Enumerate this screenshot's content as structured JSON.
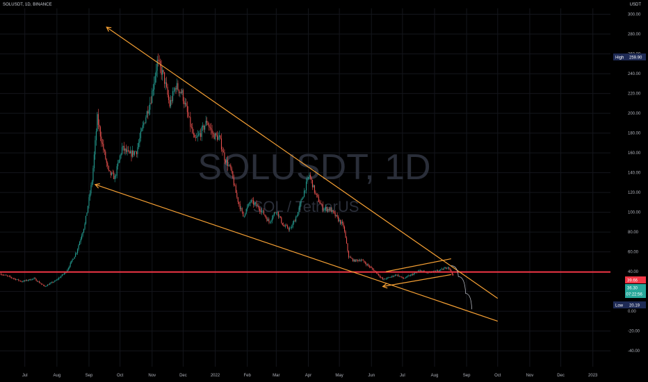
{
  "header": {
    "symbol": "SOLUSDT, 1D, BINANCE",
    "currency": "USDT"
  },
  "watermark": {
    "main": "SOLUSDT, 1D",
    "sub": "SOL / TetherUS"
  },
  "price_badges": {
    "high_label": "High",
    "high_value": "259.90",
    "resistance_value": "39.66",
    "current_value": "36.30",
    "countdown": "07:22:56",
    "low_label": "Low",
    "low_value": "20.19"
  },
  "colors": {
    "background": "#000000",
    "up": "#26a69a",
    "down": "#ef5350",
    "trendline": "#f7a134",
    "horizontal_line": "#f23645",
    "projection": "#b2b5be",
    "high_badge": "#1e2a55",
    "current_badge": "#26a69a"
  },
  "chart_data": {
    "type": "candlestick",
    "yaxis": {
      "ticks": [
        "300.00",
        "280.00",
        "260.00",
        "240.00",
        "220.00",
        "200.00",
        "180.00",
        "160.00",
        "140.00",
        "120.00",
        "100.00",
        "80.00",
        "60.00",
        "40.00",
        "20.00",
        "0.00",
        "-20.00",
        "-40.00"
      ],
      "tick_values": [
        300,
        280,
        260,
        240,
        220,
        200,
        180,
        160,
        140,
        120,
        100,
        80,
        60,
        40,
        20,
        0,
        -20,
        -40
      ],
      "range": [
        -42,
        306
      ]
    },
    "xaxis": {
      "ticks": [
        "Jul",
        "Aug",
        "Sep",
        "Oct",
        "Nov",
        "Dec",
        "2022",
        "Feb",
        "Mar",
        "Apr",
        "May",
        "Jun",
        "Jul",
        "Aug",
        "Sep",
        "Oct",
        "Nov",
        "Dec",
        "2023"
      ],
      "tick_dates": [
        "2021-07-01",
        "2021-08-01",
        "2021-09-01",
        "2021-10-01",
        "2021-11-01",
        "2021-12-01",
        "2022-01-01",
        "2022-02-01",
        "2022-03-01",
        "2022-04-01",
        "2022-05-01",
        "2022-06-01",
        "2022-07-01",
        "2022-08-01",
        "2022-09-01",
        "2022-10-01",
        "2022-11-01",
        "2022-12-01",
        "2023-01-01"
      ],
      "range": [
        "2021-06-07",
        "2023-01-18"
      ]
    },
    "price_path": [
      [
        "2021-06-07",
        38
      ],
      [
        "2021-06-18",
        34
      ],
      [
        "2021-06-28",
        30
      ],
      [
        "2021-07-10",
        33
      ],
      [
        "2021-07-20",
        25
      ],
      [
        "2021-07-31",
        31
      ],
      [
        "2021-08-10",
        40
      ],
      [
        "2021-08-20",
        60
      ],
      [
        "2021-08-28",
        88
      ],
      [
        "2021-09-04",
        132
      ],
      [
        "2021-09-09",
        195
      ],
      [
        "2021-09-14",
        168
      ],
      [
        "2021-09-20",
        140
      ],
      [
        "2021-09-26",
        135
      ],
      [
        "2021-10-03",
        165
      ],
      [
        "2021-10-10",
        158
      ],
      [
        "2021-10-17",
        162
      ],
      [
        "2021-10-24",
        190
      ],
      [
        "2021-10-31",
        215
      ],
      [
        "2021-11-06",
        252
      ],
      [
        "2021-11-12",
        238
      ],
      [
        "2021-11-18",
        208
      ],
      [
        "2021-11-24",
        228
      ],
      [
        "2021-11-30",
        220
      ],
      [
        "2021-12-06",
        196
      ],
      [
        "2021-12-12",
        172
      ],
      [
        "2021-12-18",
        180
      ],
      [
        "2021-12-24",
        192
      ],
      [
        "2021-12-30",
        178
      ],
      [
        "2022-01-05",
        175
      ],
      [
        "2022-01-10",
        155
      ],
      [
        "2022-01-16",
        143
      ],
      [
        "2022-01-22",
        115
      ],
      [
        "2022-01-28",
        96
      ],
      [
        "2022-02-04",
        111
      ],
      [
        "2022-02-10",
        107
      ],
      [
        "2022-02-16",
        100
      ],
      [
        "2022-02-22",
        90
      ],
      [
        "2022-03-01",
        102
      ],
      [
        "2022-03-08",
        86
      ],
      [
        "2022-03-15",
        83
      ],
      [
        "2022-03-22",
        100
      ],
      [
        "2022-03-29",
        125
      ],
      [
        "2022-04-02",
        138
      ],
      [
        "2022-04-08",
        118
      ],
      [
        "2022-04-15",
        104
      ],
      [
        "2022-04-22",
        103
      ],
      [
        "2022-04-29",
        94
      ],
      [
        "2022-05-05",
        86
      ],
      [
        "2022-05-10",
        55
      ],
      [
        "2022-05-15",
        51
      ],
      [
        "2022-05-22",
        52
      ],
      [
        "2022-05-29",
        46
      ],
      [
        "2022-06-05",
        40
      ],
      [
        "2022-06-12",
        32
      ],
      [
        "2022-06-18",
        34
      ],
      [
        "2022-06-25",
        37
      ],
      [
        "2022-07-02",
        33
      ],
      [
        "2022-07-10",
        37
      ],
      [
        "2022-07-18",
        41
      ],
      [
        "2022-07-25",
        39
      ],
      [
        "2022-08-01",
        40
      ],
      [
        "2022-08-08",
        42
      ],
      [
        "2022-08-14",
        45
      ],
      [
        "2022-08-19",
        36.3
      ]
    ],
    "annotations": {
      "horizontal_line": 39.66,
      "trendlines": [
        {
          "name": "upper-trendline",
          "from": [
            "2021-09-18",
            287
          ],
          "to": [
            "2022-10-01",
            13
          ],
          "arrow": "start"
        },
        {
          "name": "lower-trendline",
          "from": [
            "2021-09-07",
            128
          ],
          "to": [
            "2022-10-01",
            -10
          ],
          "arrow": "start"
        },
        {
          "name": "flag-upper",
          "from": [
            "2022-06-15",
            40
          ],
          "to": [
            "2022-08-17",
            53
          ]
        },
        {
          "name": "flag-lower",
          "from": [
            "2022-06-12",
            25
          ],
          "to": [
            "2022-08-17",
            37
          ],
          "arrow": "start"
        }
      ],
      "projection_curve": [
        [
          "2022-08-17",
          46
        ],
        [
          "2022-08-24",
          35
        ],
        [
          "2022-08-31",
          18
        ],
        [
          "2022-09-06",
          2
        ]
      ]
    }
  }
}
